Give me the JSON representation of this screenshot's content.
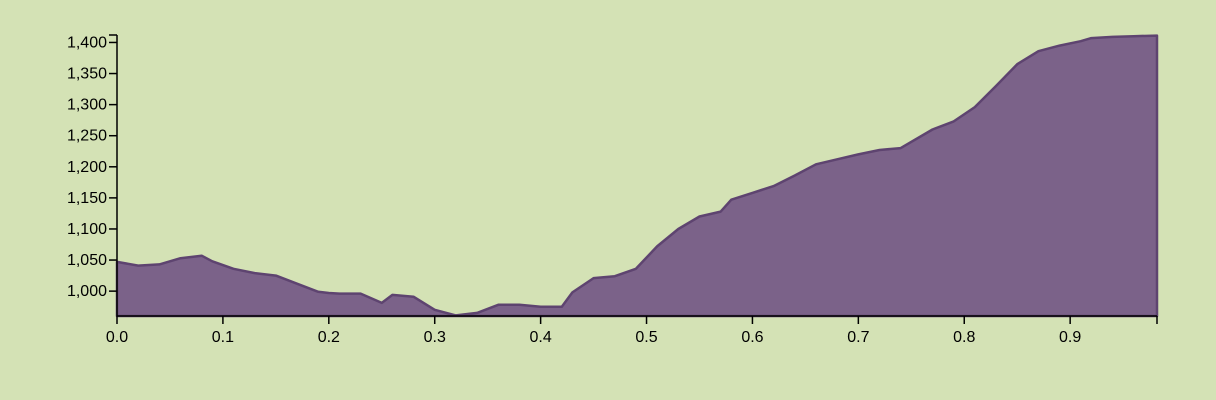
{
  "chart_data": {
    "type": "area",
    "title": "",
    "xlabel": "",
    "ylabel": "",
    "xlim": [
      0,
      0.982
    ],
    "ylim": [
      960,
      1412
    ],
    "grid": false,
    "colors": {
      "fill": "#7b6289",
      "stroke": "#5e4470",
      "background": "#d4e2b5"
    },
    "x_ticks": [
      "0.0",
      "0.1",
      "0.2",
      "0.3",
      "0.4",
      "0.5",
      "0.6",
      "0.7",
      "0.8",
      "0.9"
    ],
    "y_ticks": [
      "1,000",
      "1,050",
      "1,100",
      "1,150",
      "1,200",
      "1,250",
      "1,300",
      "1,350",
      "1,400"
    ],
    "x": [
      0.0,
      0.02,
      0.04,
      0.06,
      0.08,
      0.09,
      0.11,
      0.13,
      0.15,
      0.17,
      0.19,
      0.2,
      0.21,
      0.23,
      0.25,
      0.26,
      0.28,
      0.3,
      0.32,
      0.34,
      0.36,
      0.38,
      0.4,
      0.42,
      0.43,
      0.45,
      0.47,
      0.49,
      0.51,
      0.53,
      0.55,
      0.57,
      0.58,
      0.6,
      0.62,
      0.64,
      0.66,
      0.68,
      0.7,
      0.72,
      0.74,
      0.77,
      0.79,
      0.81,
      0.83,
      0.85,
      0.87,
      0.89,
      0.91,
      0.92,
      0.94,
      0.96,
      0.982
    ],
    "y": [
      1047,
      1041,
      1043,
      1053,
      1057,
      1048,
      1036,
      1029,
      1025,
      1012,
      999,
      997,
      996,
      996,
      981,
      994,
      991,
      970,
      961,
      965,
      978,
      978,
      975,
      975,
      998,
      1021,
      1024,
      1036,
      1072,
      1100,
      1120,
      1128,
      1147,
      1158,
      1169,
      1186,
      1204,
      1212,
      1220,
      1227,
      1230,
      1260,
      1273,
      1296,
      1330,
      1365,
      1386,
      1395,
      1402,
      1407,
      1409,
      1410,
      1411
    ]
  }
}
